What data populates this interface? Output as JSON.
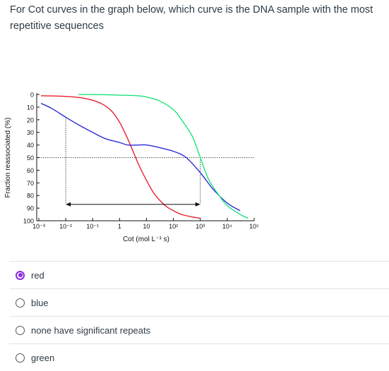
{
  "question": {
    "text": "For Cot curves in the graph below, which curve is the DNA sample with the most repetitive sequences"
  },
  "chart_data": {
    "type": "line",
    "xlabel": "Cot (mol L⁻¹ s)",
    "ylabel": "Fraction reassociated (%)",
    "x_tick_labels": [
      "10⁻³",
      "10⁻²",
      "10⁻¹",
      "1",
      "10",
      "10²",
      "10³",
      "10⁴",
      "10⁵"
    ],
    "y_tick_labels": [
      "0",
      "10",
      "20",
      "30",
      "40",
      "50",
      "60",
      "70",
      "80",
      "90",
      "100"
    ],
    "x_scale": "log",
    "xlim": [
      0.001,
      100000
    ],
    "ylim": [
      0,
      100
    ],
    "y_inverted": true,
    "series": [
      {
        "color": "#e8212e",
        "x": [
          0.0012,
          0.01,
          0.05,
          0.2,
          0.5,
          1,
          2,
          5,
          10,
          20,
          50,
          100,
          200,
          500,
          1000
        ],
        "y": [
          1,
          1.5,
          3,
          7,
          13,
          22,
          35,
          55,
          68,
          79,
          88,
          92,
          95,
          97,
          98
        ]
      },
      {
        "color": "#2b2bd9",
        "x": [
          0.0012,
          0.003,
          0.01,
          0.03,
          0.1,
          0.3,
          1,
          2,
          5,
          10,
          30,
          100,
          300,
          1000,
          3000,
          10000,
          30000
        ],
        "y": [
          7,
          11,
          18,
          24,
          30,
          35,
          38,
          40,
          40,
          40,
          42,
          45,
          50,
          62,
          75,
          86,
          92
        ]
      },
      {
        "color": "#1ee37f",
        "x": [
          0.03,
          0.1,
          0.5,
          1,
          5,
          10,
          30,
          100,
          200,
          500,
          1000,
          2000,
          5000,
          10000,
          30000,
          60000
        ],
        "y": [
          0,
          0,
          0.3,
          0.5,
          1,
          2,
          5,
          12,
          20,
          33,
          50,
          67,
          80,
          88,
          95,
          98
        ]
      }
    ],
    "annotations": [
      {
        "type": "dotted-vertical",
        "x": 0.01,
        "y_from": 18,
        "y_to": 87
      },
      {
        "type": "dotted-vertical",
        "x": 1000,
        "y_from": 50,
        "y_to": 87
      },
      {
        "type": "dotted-horizontal",
        "y": 50,
        "x_from": 0.001,
        "x_to": 100000
      },
      {
        "type": "double-arrow",
        "y": 87,
        "x_from": 0.01,
        "x_to": 1000
      }
    ]
  },
  "answers": [
    {
      "label": "red",
      "selected": true
    },
    {
      "label": "blue",
      "selected": false
    },
    {
      "label": "none have significant repeats",
      "selected": false
    },
    {
      "label": "green",
      "selected": false
    }
  ]
}
